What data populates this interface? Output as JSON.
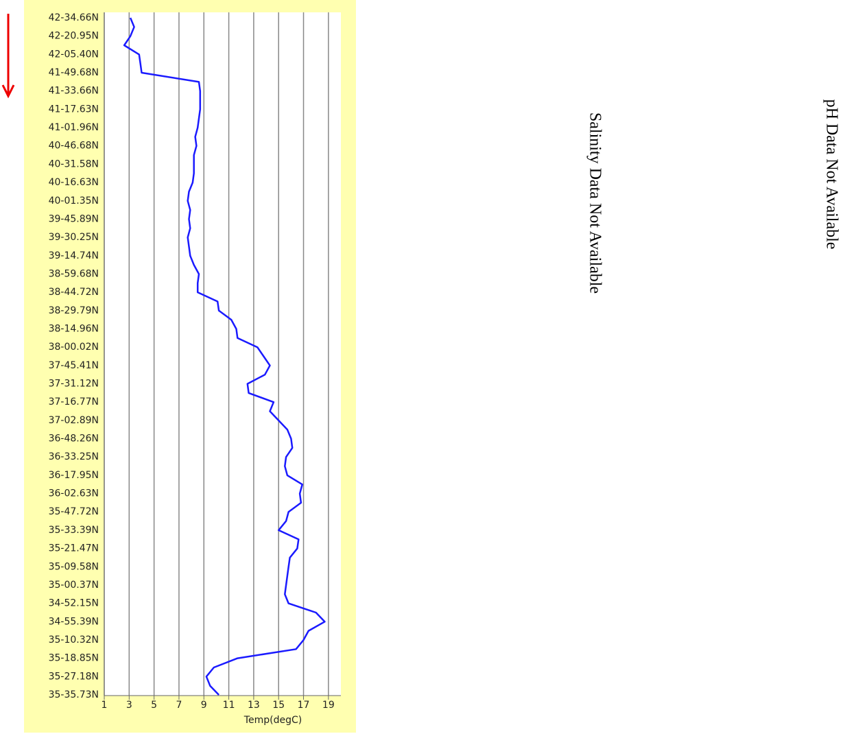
{
  "chart_data": {
    "type": "line",
    "orientation": "vertical",
    "x_label": "Temp(degC)",
    "categories": [
      "42-34.66N",
      null,
      "42-20.95N",
      null,
      "42-05.40N",
      null,
      "41-49.68N",
      null,
      "41-33.66N",
      null,
      "41-17.63N",
      null,
      "41-01.96N",
      null,
      "40-46.68N",
      null,
      "40-31.58N",
      null,
      "40-16.63N",
      null,
      "40-01.35N",
      null,
      "39-45.89N",
      null,
      "39-30.25N",
      null,
      "39-14.74N",
      null,
      "38-59.68N",
      null,
      "38-44.72N",
      null,
      "38-29.79N",
      null,
      "38-14.96N",
      null,
      "38-00.02N",
      null,
      "37-45.41N",
      null,
      "37-31.12N",
      null,
      "37-16.77N",
      null,
      "37-02.89N",
      null,
      "36-48.26N",
      null,
      "36-33.25N",
      null,
      "36-17.95N",
      null,
      "36-02.63N",
      null,
      "35-47.72N",
      null,
      "35-33.39N",
      null,
      "35-21.47N",
      null,
      "35-09.58N",
      null,
      "35-00.37N",
      null,
      "34-52.15N",
      null,
      "34-55.39N",
      null,
      "35-10.32N",
      null,
      "35-18.85N",
      null,
      "35-27.18N",
      null,
      "35-35.73N"
    ],
    "values": [
      3.1,
      3.4,
      3.1,
      2.6,
      3.8,
      3.9,
      4.0,
      8.6,
      8.7,
      8.7,
      8.7,
      8.6,
      8.5,
      8.3,
      8.4,
      8.2,
      8.2,
      8.2,
      8.1,
      7.8,
      7.7,
      7.9,
      7.8,
      7.9,
      7.7,
      7.8,
      7.9,
      8.2,
      8.6,
      8.5,
      8.5,
      10.1,
      10.2,
      11.2,
      11.6,
      11.7,
      13.3,
      13.8,
      14.3,
      13.9,
      12.5,
      12.6,
      14.6,
      14.3,
      15.0,
      15.7,
      16.0,
      16.1,
      15.6,
      15.5,
      15.7,
      16.9,
      16.7,
      16.8,
      15.8,
      15.6,
      15.0,
      16.6,
      16.5,
      15.9,
      15.8,
      15.7,
      15.6,
      15.5,
      15.8,
      18.0,
      18.7,
      17.4,
      17.0,
      16.4,
      11.7,
      9.8,
      9.2,
      9.5,
      10.2
    ],
    "color": "#1a1aff",
    "xlim": [
      1,
      20
    ],
    "xticks": [
      1,
      3,
      5,
      7,
      9,
      11,
      13,
      15,
      17,
      19
    ],
    "grid": true
  },
  "salinity_message": "Salinity Data Not Available",
  "ph_message": "pH Data Not Available"
}
